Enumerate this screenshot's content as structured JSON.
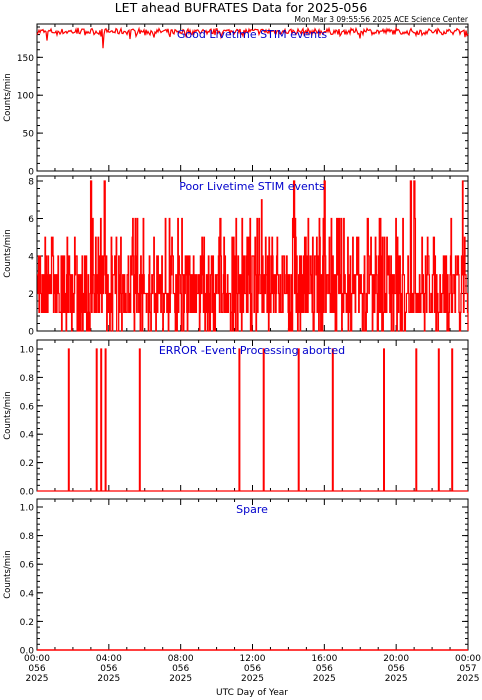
{
  "title": "LET ahead BUFRATES Data for 2025-056",
  "timestamp": "Mon Mar  3 09:55:56 2025 ACE Science Center",
  "xlabel": "UTC Day of Year",
  "colors": {
    "data": "#ff0000",
    "panel_title": "#0000cc",
    "axes": "#000000"
  },
  "x_ticks": [
    {
      "hour": 0,
      "time": "00:00",
      "doy": "056",
      "year": "2025"
    },
    {
      "hour": 4,
      "time": "04:00",
      "doy": "056",
      "year": "2025"
    },
    {
      "hour": 8,
      "time": "08:00",
      "doy": "056",
      "year": "2025"
    },
    {
      "hour": 12,
      "time": "12:00",
      "doy": "056",
      "year": "2025"
    },
    {
      "hour": 16,
      "time": "16:00",
      "doy": "056",
      "year": "2025"
    },
    {
      "hour": 20,
      "time": "20:00",
      "doy": "056",
      "year": "2025"
    },
    {
      "hour": 24,
      "time": "00:00",
      "doy": "057",
      "year": "2025"
    }
  ],
  "chart_data": [
    {
      "type": "line",
      "title": "Good Livetime STIM events",
      "ylabel": "Counts/min",
      "ylim": [
        0,
        190
      ],
      "yticks": [
        0,
        50,
        100,
        150
      ],
      "xlim": [
        0,
        24
      ],
      "series": [
        {
          "kind": "noise",
          "base": 184,
          "amp": 4,
          "min": 176,
          "max": 189,
          "dips": [
            [
              0.55,
              172
            ],
            [
              3.7,
              162
            ],
            [
              5.2,
              174
            ],
            [
              7.4,
              177
            ],
            [
              18.0,
              175
            ]
          ]
        }
      ]
    },
    {
      "type": "line",
      "title": "Poor Livetime STIM events",
      "ylabel": "Counts/min",
      "ylim": [
        0,
        8
      ],
      "yticks": [
        0,
        2,
        4,
        6,
        8
      ],
      "xlim": [
        0,
        24
      ],
      "series": [
        {
          "kind": "counts",
          "spikes": [
            [
              3.0,
              8
            ],
            [
              3.75,
              8
            ],
            [
              12.5,
              7
            ],
            [
              14.3,
              8
            ],
            [
              16.0,
              8
            ],
            [
              20.8,
              8
            ],
            [
              21.0,
              8
            ],
            [
              23.7,
              8
            ],
            [
              6.5,
              5
            ],
            [
              10.2,
              6
            ],
            [
              18.4,
              6
            ]
          ]
        }
      ]
    },
    {
      "type": "line",
      "title": "ERROR -Event Processing aborted",
      "ylabel": "Counts/min",
      "ylim": [
        0,
        1
      ],
      "yticks": [
        0.0,
        0.2,
        0.4,
        0.6,
        0.8,
        1.0
      ],
      "xlim": [
        0,
        24
      ],
      "series": [
        {
          "kind": "events",
          "times": [
            1.75,
            3.3,
            3.55,
            3.8,
            5.7,
            11.25,
            12.6,
            14.55,
            16.45,
            19.3,
            21.1,
            22.35,
            23.1
          ]
        }
      ]
    },
    {
      "type": "line",
      "title": "Spare",
      "ylabel": "Counts/min",
      "ylim": [
        0,
        1
      ],
      "yticks": [
        0.0,
        0.2,
        0.4,
        0.6,
        0.8,
        1.0
      ],
      "xlim": [
        0,
        24
      ],
      "series": [
        {
          "kind": "flat",
          "value": 0
        }
      ]
    }
  ]
}
